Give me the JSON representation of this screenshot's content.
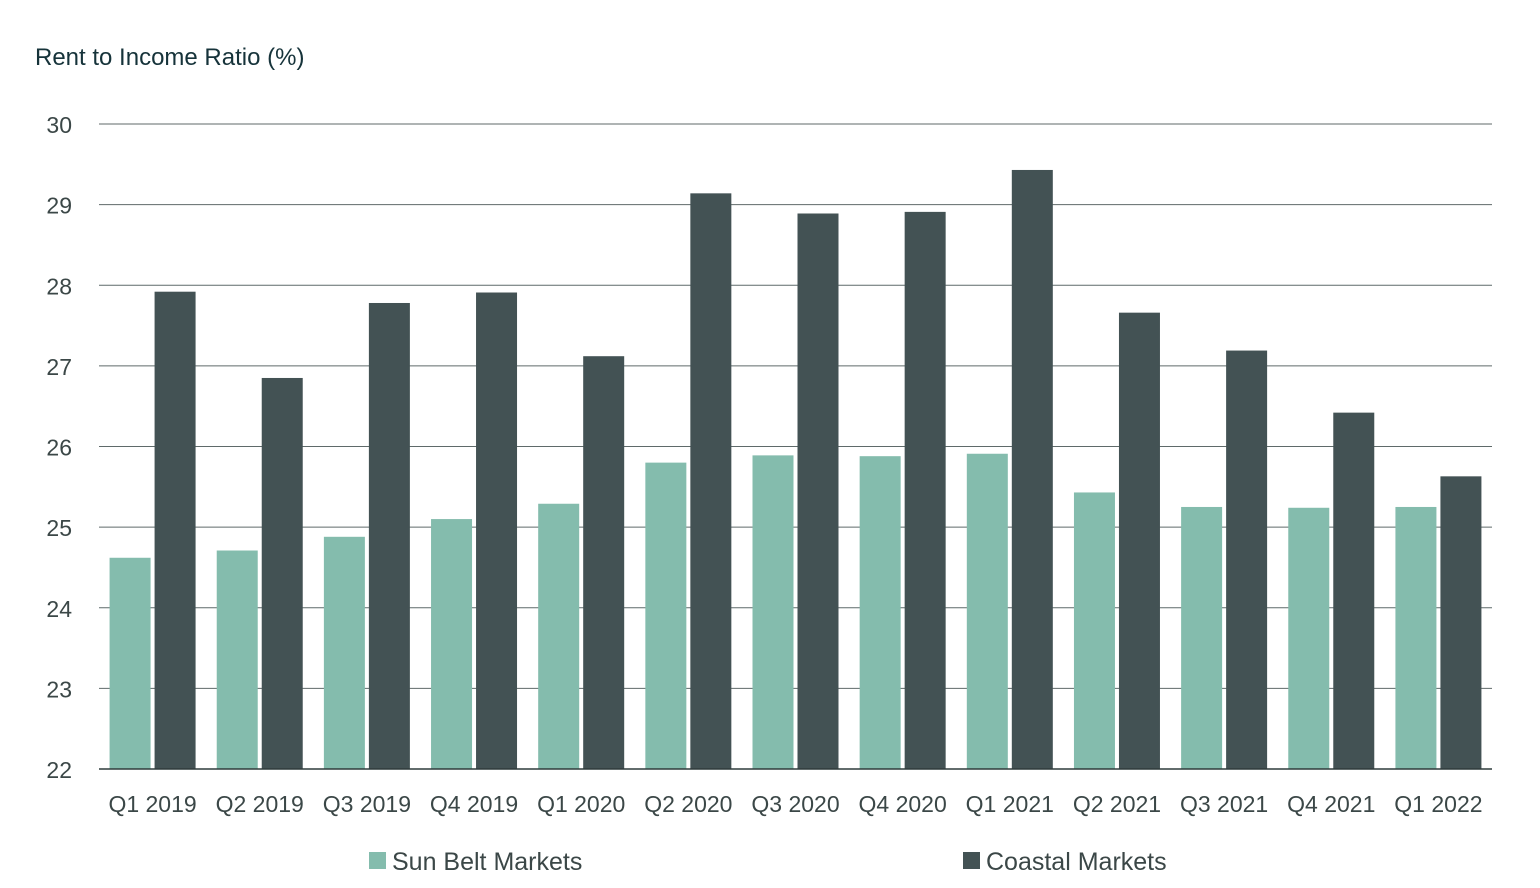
{
  "chart_data": {
    "type": "bar",
    "title": "",
    "ylabel": "Rent to Income Ratio (%)",
    "xlabel": "",
    "ylim": [
      22,
      30
    ],
    "yticks": [
      22,
      23,
      24,
      25,
      26,
      27,
      28,
      29,
      30
    ],
    "grid": true,
    "legend_position": "bottom",
    "categories": [
      "Q1 2019",
      "Q2 2019",
      "Q3 2019",
      "Q4 2019",
      "Q1 2020",
      "Q2 2020",
      "Q3 2020",
      "Q4 2020",
      "Q1 2021",
      "Q2 2021",
      "Q3 2021",
      "Q4 2021",
      "Q1 2022"
    ],
    "series": [
      {
        "name": "Sun Belt Markets",
        "color": "#84bcad",
        "values": [
          24.62,
          24.71,
          24.88,
          25.1,
          25.29,
          25.8,
          25.89,
          25.88,
          25.91,
          25.43,
          25.25,
          25.24,
          25.25
        ]
      },
      {
        "name": "Coastal Markets",
        "color": "#435254",
        "values": [
          27.92,
          26.85,
          27.78,
          27.91,
          27.12,
          29.14,
          28.89,
          28.91,
          29.43,
          27.66,
          27.19,
          26.42,
          25.63
        ]
      }
    ]
  }
}
